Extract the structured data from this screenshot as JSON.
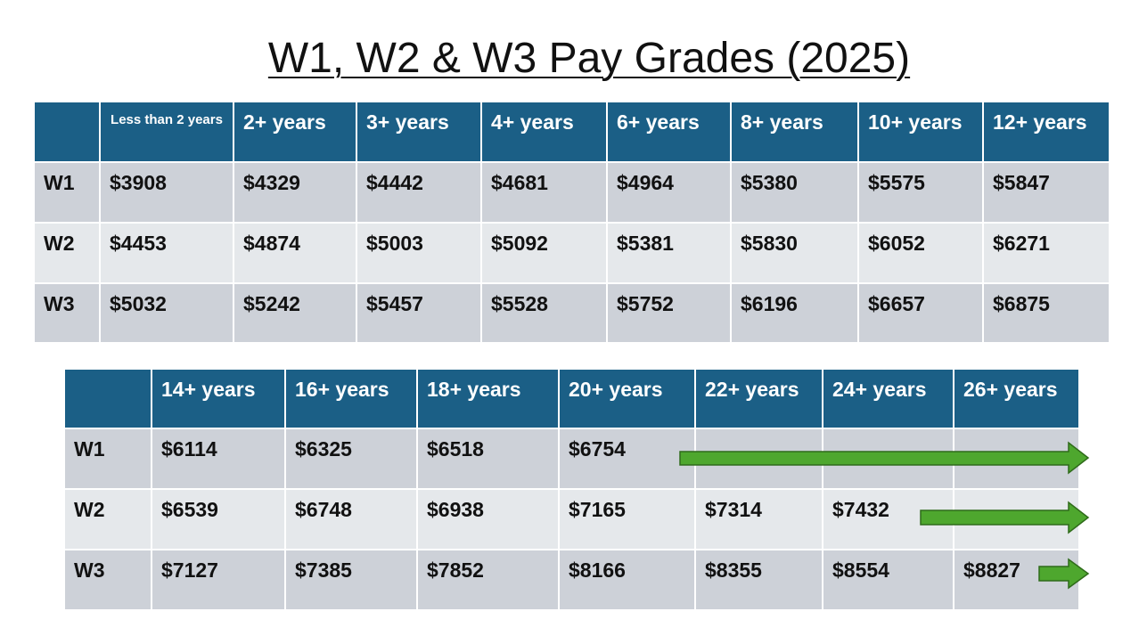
{
  "title": "W1, W2 & W3 Pay Grades (2025)",
  "table1": {
    "headers": [
      "Less than 2 years",
      "2+ years",
      "3+ years",
      "4+ years",
      "6+ years",
      "8+ years",
      "10+ years",
      "12+ years"
    ],
    "rows": [
      [
        "W1",
        "$3908",
        "$4329",
        "$4442",
        "$4681",
        "$4964",
        "$5380",
        "$5575",
        "$5847"
      ],
      [
        "W2",
        "$4453",
        "$4874",
        "$5003",
        "$5092",
        "$5381",
        "$5830",
        "$6052",
        "$6271"
      ],
      [
        "W3",
        "$5032",
        "$5242",
        "$5457",
        "$5528",
        "$5752",
        "$6196",
        "$6657",
        "$6875"
      ]
    ]
  },
  "table2": {
    "headers": [
      "14+ years",
      "16+ years",
      "18+ years",
      "20+ years",
      "22+ years",
      "24+ years",
      "26+ years"
    ],
    "rows": [
      [
        "W1",
        "$6114",
        "$6325",
        "$6518",
        "$6754"
      ],
      [
        "W2",
        "$6539",
        "$6748",
        "$6938",
        "$7165",
        "$7314",
        "$7432"
      ],
      [
        "W3",
        "$7127",
        "$7385",
        "$7852",
        "$8166",
        "$8355",
        "$8554",
        "$8827"
      ]
    ]
  }
}
